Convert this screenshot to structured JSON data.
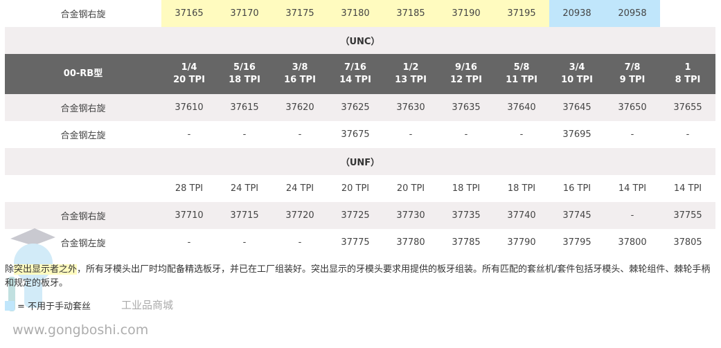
{
  "top_row": {
    "label": "合金钢右旋",
    "values": [
      "37165",
      "37170",
      "37175",
      "37180",
      "37185",
      "37190",
      "37195",
      "20938",
      "20958",
      ""
    ],
    "highlight": [
      "yellow",
      "yellow",
      "yellow",
      "yellow",
      "yellow",
      "yellow",
      "yellow",
      "blue",
      "blue",
      "none"
    ]
  },
  "unc": {
    "section": "（UNC）",
    "header": {
      "model": "00-RB型",
      "cols": [
        [
          "1/4",
          "20 TPI"
        ],
        [
          "5/16",
          "18 TPI"
        ],
        [
          "3/8",
          "16 TPI"
        ],
        [
          "7/16",
          "14 TPI"
        ],
        [
          "1/2",
          "13 TPI"
        ],
        [
          "9/16",
          "12 TPI"
        ],
        [
          "5/8",
          "11 TPI"
        ],
        [
          "3/4",
          "10 TPI"
        ],
        [
          "7/8",
          "9 TPI"
        ],
        [
          "1",
          "8 TPI"
        ]
      ]
    },
    "rows": [
      {
        "label": "合金钢右旋",
        "values": [
          "37610",
          "37615",
          "37620",
          "37625",
          "37630",
          "37635",
          "37640",
          "37645",
          "37650",
          "37655"
        ]
      },
      {
        "label": "合金钢左旋",
        "values": [
          "-",
          "-",
          "-",
          "37675",
          "-",
          "-",
          "-",
          "37695",
          "-",
          "-"
        ]
      }
    ]
  },
  "unf": {
    "section": "（UNF）",
    "tpi": [
      "28 TPI",
      "24 TPI",
      "24 TPI",
      "20 TPI",
      "20 TPI",
      "18 TPI",
      "18 TPI",
      "16 TPI",
      "14 TPI",
      "14 TPI"
    ],
    "rows": [
      {
        "label": "合金钢右旋",
        "values": [
          "37710",
          "37715",
          "37720",
          "37725",
          "37730",
          "37735",
          "37740",
          "37745",
          "-",
          "37755"
        ]
      },
      {
        "label": "合金钢左旋",
        "values": [
          "-",
          "-",
          "-",
          "37775",
          "37780",
          "37785",
          "37790",
          "37795",
          "37800",
          "37805"
        ]
      }
    ]
  },
  "note": {
    "pre": "除",
    "highlight": "突出显示者之外",
    "rest": "，所有牙模头出厂时均配备精选板牙，并已在工厂组装好。突出显示的牙模头要求用提供的板牙组装。所有匹配的套丝机/套件包括牙模头、棘轮组件、棘轮手柄和规定的板牙。"
  },
  "legend": {
    "text": "= 不用于手动套丝",
    "color": "#c0e6fb"
  },
  "watermark": {
    "url": "www.gongboshi.com",
    "text": "工业品商城",
    "mark": "®"
  },
  "colors": {
    "header_bg": "#666666",
    "yellow": "#fffbbf",
    "blue": "#c0e6fb",
    "row_gray": "#f2eeef"
  }
}
